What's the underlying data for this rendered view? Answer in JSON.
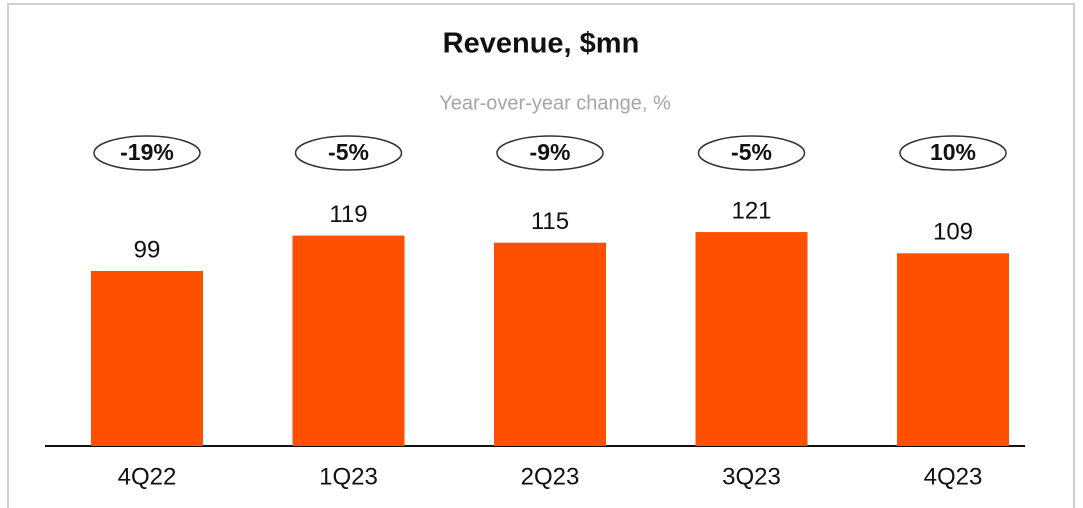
{
  "chart_data": {
    "type": "bar",
    "title": "Revenue, $mn",
    "subtitle": "Year-over-year change, %",
    "categories": [
      "4Q22",
      "1Q23",
      "2Q23",
      "3Q23",
      "4Q23"
    ],
    "values": [
      99,
      119,
      115,
      121,
      109
    ],
    "color": "#ff5000",
    "annotations": [
      "-19%",
      "-5%",
      "-9%",
      "-5%",
      "10%"
    ]
  }
}
